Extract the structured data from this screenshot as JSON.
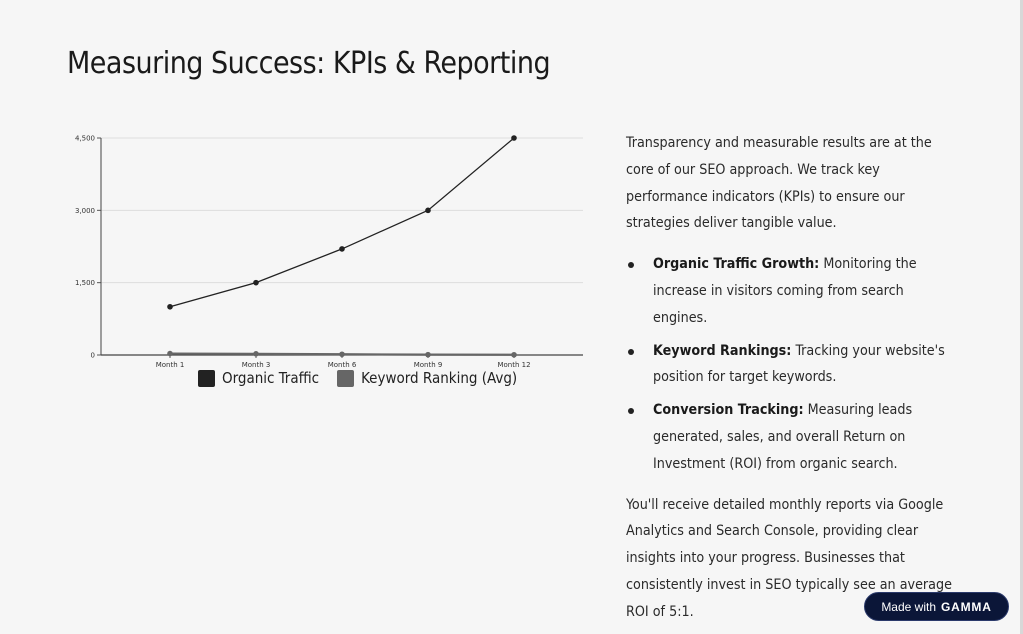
{
  "slide": {
    "title": "Measuring Success: KPIs & Reporting"
  },
  "intro": "Transparency and measurable results are at the core of our SEO approach. We track key performance indicators (KPIs) to ensure our strategies deliver tangible value.",
  "bullets": [
    {
      "label": "Organic Traffic Growth:",
      "text": " Monitoring the increase in visitors coming from search engines."
    },
    {
      "label": "Keyword Rankings:",
      "text": " Tracking your website's position for target keywords."
    },
    {
      "label": "Conversion Tracking:",
      "text": " Measuring leads generated, sales, and overall Return on Investment (ROI) from organic search."
    }
  ],
  "closing": "You'll receive detailed monthly reports via Google Analytics and Search Console, providing clear insights into your progress. Businesses that consistently invest in SEO typically see an average ROI of 5:1.",
  "badge": {
    "prefix": "Made with",
    "brand": "GAMMA"
  },
  "colors": {
    "background": "#f6f6f6",
    "series1": "#222222",
    "series2": "#666666",
    "badge": "#0b1638"
  },
  "chart_data": {
    "type": "line",
    "categories": [
      "Month 1",
      "Month 3",
      "Month 6",
      "Month 9",
      "Month 12"
    ],
    "series": [
      {
        "name": "Organic Traffic",
        "values": [
          1000,
          1500,
          2200,
          3000,
          4500
        ],
        "color": "#222222"
      },
      {
        "name": "Keyword Ranking (Avg)",
        "values": [
          30,
          25,
          15,
          8,
          5
        ],
        "color": "#666666"
      }
    ],
    "yticks": [
      0,
      1500,
      3000,
      4500
    ],
    "ytick_labels": [
      "0",
      "1,500",
      "3,000",
      "4,500"
    ],
    "ylim": [
      0,
      4500
    ],
    "title": "",
    "xlabel": "",
    "ylabel": "",
    "grid": true,
    "legend": "bottom"
  }
}
